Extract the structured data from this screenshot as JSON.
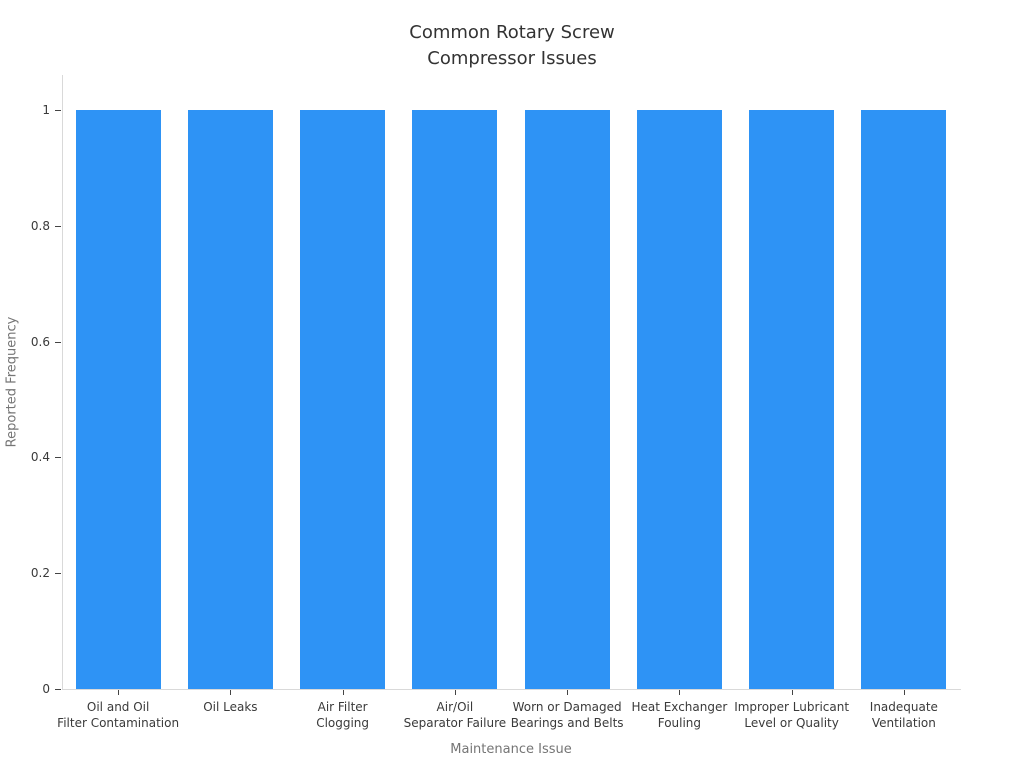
{
  "chart_data": {
    "type": "bar",
    "title": "Common Rotary Screw\nCompressor Issues",
    "xlabel": "Maintenance Issue",
    "ylabel": "Reported Frequency",
    "categories": [
      "Oil and Oil\nFilter Contamination",
      "Oil Leaks",
      "Air Filter\nClogging",
      "Air/Oil\nSeparator Failure",
      "Worn or Damaged\nBearings and Belts",
      "Heat Exchanger\nFouling",
      "Improper Lubricant\nLevel or Quality",
      "Inadequate\nVentilation"
    ],
    "values": [
      1,
      1,
      1,
      1,
      1,
      1,
      1,
      1
    ],
    "ytick_values": [
      0,
      0.2,
      0.4,
      0.6,
      0.8,
      1
    ],
    "ytick_labels": [
      "0",
      "0.2",
      "0.4",
      "0.6",
      "0.8",
      "1"
    ],
    "ylim": [
      0,
      1.06
    ],
    "grid": false,
    "legend": false,
    "bar_color": "#2e93f5",
    "axis_line_color": "#d9d9d9",
    "tick_mark_color": "#444444",
    "title_color": "#333333",
    "tick_label_color": "#3a3a3a",
    "axis_title_color": "#757575"
  }
}
